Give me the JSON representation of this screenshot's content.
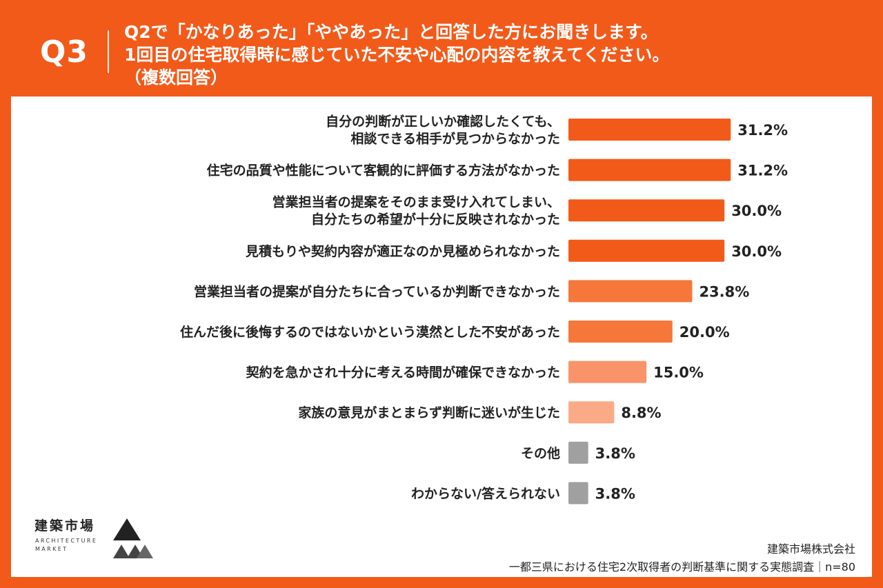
{
  "header": {
    "q_number": "Q3",
    "question_lines": [
      "Q2で「かなりあった」「ややあった」と回答した方にお聞きします。",
      "1回目の住宅取得時に感じていた不安や心配の内容を教えてください。",
      "（複数回答）"
    ]
  },
  "colors": {
    "brand": "#f25a1a",
    "bar_high": "#f25a1a",
    "bar_mid": "#f5773a",
    "bar_low": "#f9936a",
    "bar_lowest": "#fbaa87",
    "bar_other": "#a0a0a0"
  },
  "chart_data": {
    "type": "bar",
    "orientation": "horizontal",
    "title": "",
    "xlabel": "",
    "ylabel": "",
    "xlim": [
      0,
      100
    ],
    "unit": "%",
    "categories": [
      [
        "自分の判断が正しいか確認したくても、",
        "相談できる相手が見つからなかった"
      ],
      [
        "住宅の品質や性能について客観的に評価する方法がなかった"
      ],
      [
        "営業担当者の提案をそのまま受け入れてしまい、",
        "自分たちの希望が十分に反映されなかった"
      ],
      [
        "見積もりや契約内容が適正なのか見極められなかった"
      ],
      [
        "営業担当者の提案が自分たちに合っているか判断できなかった"
      ],
      [
        "住んだ後に後悔するのではないかという漠然とした不安があった"
      ],
      [
        "契約を急かされ十分に考える時間が確保できなかった"
      ],
      [
        "家族の意見がまとまらず判断に迷いが生じた"
      ],
      [
        "その他"
      ],
      [
        "わからない/答えられない"
      ]
    ],
    "values": [
      31.2,
      31.2,
      30.0,
      30.0,
      23.8,
      20.0,
      15.0,
      8.8,
      3.8,
      3.8
    ],
    "value_labels": [
      "31.2%",
      "31.2%",
      "30.0%",
      "30.0%",
      "23.8%",
      "20.0%",
      "15.0%",
      "8.8%",
      "3.8%",
      "3.8%"
    ],
    "bar_colors": [
      "#f25a1a",
      "#f25a1a",
      "#f25a1a",
      "#f25a1a",
      "#f5773a",
      "#f5773a",
      "#f9936a",
      "#fbaa87",
      "#a0a0a0",
      "#a0a0a0"
    ]
  },
  "logo": {
    "name_jp": "建築市場",
    "name_en_line1": "ARCHITECTURE",
    "name_en_line2": "MARKET"
  },
  "footer": {
    "company": "建築市場株式会社",
    "survey": "一都三県における住宅2次取得者の判断基準に関する実態調査｜n=80"
  }
}
